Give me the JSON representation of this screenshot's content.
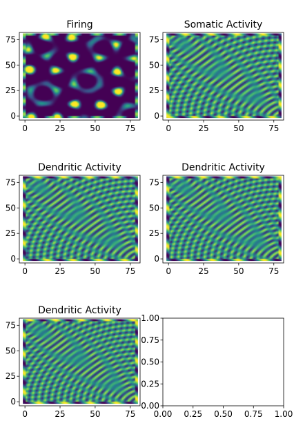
{
  "chart_data": [
    {
      "type": "scatter",
      "title": "Firing",
      "xlabel": "",
      "ylabel": "",
      "xlim": [
        -4,
        82
      ],
      "ylim": [
        -4,
        82
      ],
      "xticks": [
        "0",
        "25",
        "50",
        "75"
      ],
      "yticks": [
        "0",
        "25",
        "50",
        "75"
      ],
      "grid": [
        80,
        80
      ],
      "pattern": "sparse-blobs",
      "colormap": "viridis"
    },
    {
      "type": "scatter",
      "title": "Somatic Activity",
      "xlabel": "",
      "ylabel": "",
      "xlim": [
        -4,
        82
      ],
      "ylim": [
        -4,
        82
      ],
      "xticks": [
        "0",
        "25",
        "50",
        "75"
      ],
      "yticks": [
        "0",
        "25",
        "50",
        "75"
      ],
      "grid": [
        80,
        80
      ],
      "pattern": "concentric-rings",
      "colormap": "viridis"
    },
    {
      "type": "scatter",
      "title": "Dendritic Activity",
      "xlabel": "",
      "ylabel": "",
      "xlim": [
        -4,
        82
      ],
      "ylim": [
        -4,
        82
      ],
      "xticks": [
        "0",
        "25",
        "50",
        "75"
      ],
      "yticks": [
        "0",
        "25",
        "50",
        "75"
      ],
      "grid": [
        80,
        80
      ],
      "pattern": "concentric-rings",
      "colormap": "viridis"
    },
    {
      "type": "scatter",
      "title": "Dendritic Activity",
      "xlabel": "",
      "ylabel": "",
      "xlim": [
        -4,
        82
      ],
      "ylim": [
        -4,
        82
      ],
      "xticks": [
        "0",
        "25",
        "50",
        "75"
      ],
      "yticks": [
        "0",
        "25",
        "50",
        "75"
      ],
      "grid": [
        80,
        80
      ],
      "pattern": "concentric-rings",
      "colormap": "viridis"
    },
    {
      "type": "scatter",
      "title": "Dendritic Activity",
      "xlabel": "",
      "ylabel": "",
      "xlim": [
        -4,
        82
      ],
      "ylim": [
        -4,
        82
      ],
      "xticks": [
        "0",
        "25",
        "50",
        "75"
      ],
      "yticks": [
        "0",
        "25",
        "50",
        "75"
      ],
      "grid": [
        80,
        80
      ],
      "pattern": "concentric-rings",
      "colormap": "viridis"
    },
    {
      "type": "scatter",
      "title": "",
      "xlabel": "",
      "ylabel": "",
      "xlim": [
        0,
        1
      ],
      "ylim": [
        0,
        1
      ],
      "xticks": [
        "0.00",
        "0.25",
        "0.50",
        "0.75",
        "1.00"
      ],
      "yticks": [
        "0.00",
        "0.25",
        "0.50",
        "0.75",
        "1.00"
      ],
      "pattern": "empty"
    }
  ],
  "colors": {
    "viridis": [
      "#440154",
      "#3b528b",
      "#21918c",
      "#5ec962",
      "#fde725"
    ],
    "axis": "#000000",
    "background": "#ffffff"
  }
}
